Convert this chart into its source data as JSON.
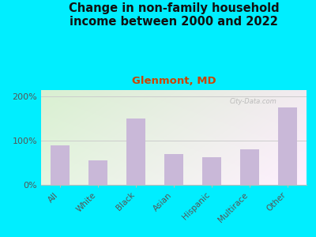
{
  "title": "Change in non-family household\nincome between 2000 and 2022",
  "subtitle": "Glenmont, MD",
  "categories": [
    "All",
    "White",
    "Black",
    "Asian",
    "Hispanic",
    "Multirace",
    "Other"
  ],
  "values": [
    90,
    55,
    150,
    70,
    63,
    80,
    175
  ],
  "bar_color": "#c9b8d8",
  "background_outer": "#00eeff",
  "title_fontsize": 10.5,
  "subtitle_fontsize": 9.5,
  "subtitle_color": "#cc4400",
  "title_color": "#111111",
  "yticks": [
    0,
    100,
    200
  ],
  "ytick_labels": [
    "0%",
    "100%",
    "200%"
  ],
  "ylim": [
    0,
    215
  ],
  "watermark": "City-Data.com"
}
